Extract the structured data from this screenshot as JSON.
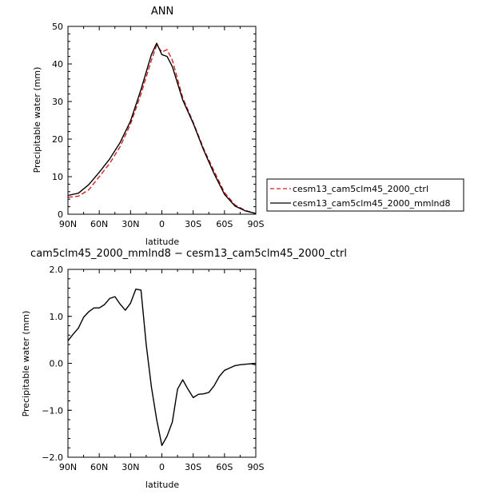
{
  "chart_data": [
    {
      "type": "line",
      "title": "ANN",
      "xlabel": "latitude",
      "ylabel": "Precipitable water (mm)",
      "xticks": [
        "90N",
        "60N",
        "30N",
        "0",
        "30S",
        "60S",
        "90S"
      ],
      "xtick_values": [
        90,
        60,
        30,
        0,
        -30,
        -60,
        -90
      ],
      "xlim": [
        90,
        -90
      ],
      "ylim": [
        0,
        50
      ],
      "yticks": [
        "0",
        "10",
        "20",
        "30",
        "40",
        "50"
      ],
      "ytick_values": [
        0,
        10,
        20,
        30,
        40,
        50
      ],
      "legend_position": "right",
      "grid": false,
      "series": [
        {
          "name": "cesm13_cam5clm45_2000_ctrl",
          "color": "#d61f1f",
          "dash": true,
          "x": [
            90,
            80,
            70,
            60,
            50,
            40,
            30,
            20,
            10,
            5,
            0,
            -5,
            -10,
            -20,
            -30,
            -40,
            -50,
            -60,
            -70,
            -80,
            -90
          ],
          "y": [
            4.5,
            4.8,
            6.5,
            10,
            13.5,
            18,
            24,
            32,
            41,
            45,
            43.2,
            43.8,
            41,
            31,
            24.5,
            17.5,
            11.5,
            5.8,
            2.5,
            1.0,
            0.2
          ]
        },
        {
          "name": "cesm13_cam5clm45_2000_mmlnd8",
          "color": "#000000",
          "dash": false,
          "x": [
            90,
            80,
            70,
            60,
            50,
            40,
            30,
            20,
            10,
            5,
            0,
            -5,
            -10,
            -20,
            -30,
            -40,
            -50,
            -60,
            -70,
            -80,
            -90
          ],
          "y": [
            5.0,
            5.6,
            7.9,
            11.2,
            14.7,
            19.1,
            24.8,
            33.2,
            42.5,
            45.5,
            42.5,
            42.0,
            39.3,
            30.4,
            24.2,
            17.1,
            10.8,
            5.3,
            2.2,
            0.9,
            0.2
          ]
        }
      ]
    },
    {
      "type": "line",
      "title": "cam5clm45_2000_mmlnd8 − cesm13_cam5clm45_2000_ctrl",
      "xlabel": "latitude",
      "ylabel": "Precipitable water (mm)",
      "xticks": [
        "90N",
        "60N",
        "30N",
        "0",
        "30S",
        "60S",
        "90S"
      ],
      "xtick_values": [
        90,
        60,
        30,
        0,
        -30,
        -60,
        -90
      ],
      "xlim": [
        90,
        -90
      ],
      "ylim": [
        -2,
        2
      ],
      "yticks": [
        "2.0",
        "1.0",
        "0.0",
        "−1.0",
        "−2.0"
      ],
      "ytick_values": [
        2,
        1,
        0,
        -1,
        -2
      ],
      "grid": false,
      "series": [
        {
          "color": "#000000",
          "dash": false,
          "x": [
            90,
            85,
            80,
            75,
            70,
            65,
            60,
            55,
            50,
            45,
            40,
            35,
            30,
            25,
            20,
            15,
            10,
            5,
            0,
            -5,
            -10,
            -15,
            -20,
            -25,
            -30,
            -35,
            -40,
            -45,
            -50,
            -55,
            -60,
            -65,
            -70,
            -75,
            -80,
            -85,
            -90
          ],
          "y": [
            0.48,
            0.62,
            0.75,
            0.98,
            1.1,
            1.18,
            1.18,
            1.25,
            1.38,
            1.42,
            1.26,
            1.13,
            1.28,
            1.58,
            1.56,
            0.4,
            -0.5,
            -1.2,
            -1.75,
            -1.55,
            -1.25,
            -0.55,
            -0.35,
            -0.55,
            -0.73,
            -0.66,
            -0.65,
            -0.62,
            -0.48,
            -0.28,
            -0.15,
            -0.1,
            -0.05,
            -0.03,
            -0.02,
            -0.01,
            -0.03
          ]
        }
      ]
    }
  ]
}
